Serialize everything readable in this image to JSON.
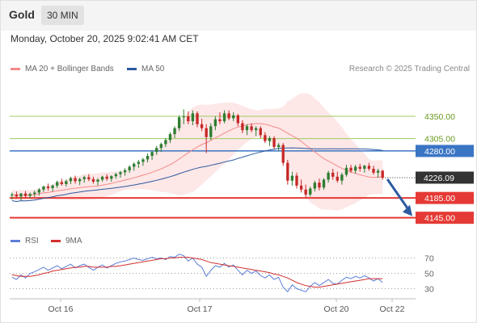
{
  "header": {
    "symbol": "Gold",
    "timeframe": "30 MIN",
    "datetime": "Monday, October 20, 2025 9:02:41 AM CET"
  },
  "legend": {
    "ma20": "MA 20 + Bollinger Bands",
    "ma50": "MA 50",
    "rsi": "RSI",
    "ma9": "9MA",
    "credit": "Research © 2025 Trading Central"
  },
  "colors": {
    "ma20": "#f58a8a",
    "ma50": "#2c5aa0",
    "band": "#fde3e3",
    "up": "#2e7d32",
    "down": "#c62828",
    "resistance": "#9ccc65",
    "pivot": "#3a75c4",
    "support": "#e53935",
    "arrow": "#2c5aa0",
    "rsi": "#5b7fd6",
    "rsi_ma": "#d32f2f"
  },
  "chart_data": [
    {
      "type": "candlestick",
      "x_labels": [
        "Oct 16",
        "Oct 17",
        "Oct 20",
        "Oct 22"
      ],
      "ylim": [
        4120,
        4430
      ],
      "levels": [
        {
          "value": 4350.0,
          "label": "4350.00",
          "kind": "resistance"
        },
        {
          "value": 4305.0,
          "label": "4305.00",
          "kind": "resistance"
        },
        {
          "value": 4280.0,
          "label": "4280.00",
          "kind": "pivot"
        },
        {
          "value": 4185.0,
          "label": "4185.00",
          "kind": "support"
        },
        {
          "value": 4145.0,
          "label": "4145.00",
          "kind": "support"
        }
      ],
      "last_price": {
        "value": 4226.09,
        "label": "4226.09"
      },
      "forecast_target": 4145,
      "candles": [
        [
          4190,
          4196,
          4182,
          4192
        ],
        [
          4192,
          4198,
          4185,
          4188
        ],
        [
          4188,
          4195,
          4180,
          4194
        ],
        [
          4194,
          4199,
          4186,
          4189
        ],
        [
          4189,
          4196,
          4184,
          4193
        ],
        [
          4193,
          4200,
          4187,
          4196
        ],
        [
          4196,
          4205,
          4190,
          4202
        ],
        [
          4202,
          4210,
          4197,
          4208
        ],
        [
          4208,
          4214,
          4200,
          4205
        ],
        [
          4205,
          4212,
          4198,
          4210
        ],
        [
          4210,
          4220,
          4205,
          4217
        ],
        [
          4217,
          4224,
          4210,
          4213
        ],
        [
          4213,
          4222,
          4208,
          4219
        ],
        [
          4219,
          4228,
          4213,
          4225
        ],
        [
          4225,
          4230,
          4214,
          4219
        ],
        [
          4219,
          4226,
          4211,
          4223
        ],
        [
          4223,
          4230,
          4216,
          4227
        ],
        [
          4227,
          4233,
          4219,
          4223
        ],
        [
          4223,
          4228,
          4214,
          4218
        ],
        [
          4218,
          4225,
          4210,
          4222
        ],
        [
          4222,
          4230,
          4218,
          4228
        ],
        [
          4228,
          4233,
          4220,
          4224
        ],
        [
          4224,
          4231,
          4218,
          4229
        ],
        [
          4229,
          4236,
          4224,
          4233
        ],
        [
          4233,
          4240,
          4226,
          4237
        ],
        [
          4237,
          4245,
          4230,
          4241
        ],
        [
          4241,
          4251,
          4236,
          4248
        ],
        [
          4248,
          4257,
          4240,
          4254
        ],
        [
          4254,
          4262,
          4246,
          4258
        ],
        [
          4258,
          4266,
          4250,
          4263
        ],
        [
          4263,
          4275,
          4257,
          4270
        ],
        [
          4270,
          4281,
          4262,
          4278
        ],
        [
          4278,
          4290,
          4272,
          4286
        ],
        [
          4286,
          4297,
          4278,
          4294
        ],
        [
          4294,
          4306,
          4288,
          4302
        ],
        [
          4302,
          4318,
          4296,
          4314
        ],
        [
          4314,
          4330,
          4306,
          4326
        ],
        [
          4326,
          4352,
          4320,
          4348
        ],
        [
          4348,
          4364,
          4334,
          4350
        ],
        [
          4350,
          4360,
          4334,
          4340
        ],
        [
          4340,
          4362,
          4332,
          4356
        ],
        [
          4356,
          4360,
          4328,
          4334
        ],
        [
          4334,
          4345,
          4320,
          4326
        ],
        [
          4326,
          4334,
          4276,
          4308
        ],
        [
          4308,
          4336,
          4302,
          4330
        ],
        [
          4330,
          4350,
          4322,
          4344
        ],
        [
          4344,
          4358,
          4334,
          4340
        ],
        [
          4340,
          4362,
          4336,
          4356
        ],
        [
          4356,
          4362,
          4342,
          4346
        ],
        [
          4346,
          4358,
          4340,
          4352
        ],
        [
          4352,
          4355,
          4330,
          4336
        ],
        [
          4336,
          4342,
          4316,
          4322
        ],
        [
          4322,
          4334,
          4312,
          4330
        ],
        [
          4330,
          4336,
          4318,
          4322
        ],
        [
          4322,
          4330,
          4310,
          4326
        ],
        [
          4326,
          4330,
          4306,
          4312
        ],
        [
          4312,
          4318,
          4296,
          4300
        ],
        [
          4300,
          4310,
          4290,
          4306
        ],
        [
          4306,
          4310,
          4284,
          4288
        ],
        [
          4288,
          4296,
          4280,
          4292
        ],
        [
          4292,
          4296,
          4250,
          4256
        ],
        [
          4256,
          4262,
          4212,
          4220
        ],
        [
          4220,
          4238,
          4210,
          4230
        ],
        [
          4230,
          4236,
          4204,
          4210
        ],
        [
          4210,
          4222,
          4196,
          4202
        ],
        [
          4202,
          4212,
          4186,
          4192
        ],
        [
          4192,
          4208,
          4188,
          4204
        ],
        [
          4204,
          4220,
          4198,
          4216
        ],
        [
          4216,
          4224,
          4200,
          4206
        ],
        [
          4206,
          4225,
          4202,
          4222
        ],
        [
          4222,
          4240,
          4216,
          4236
        ],
        [
          4236,
          4244,
          4222,
          4228
        ],
        [
          4228,
          4238,
          4216,
          4220
        ],
        [
          4220,
          4236,
          4212,
          4232
        ],
        [
          4232,
          4252,
          4228,
          4246
        ],
        [
          4246,
          4252,
          4236,
          4240
        ],
        [
          4240,
          4252,
          4234,
          4248
        ],
        [
          4248,
          4254,
          4238,
          4244
        ],
        [
          4244,
          4252,
          4236,
          4250
        ],
        [
          4250,
          4256,
          4240,
          4244
        ],
        [
          4244,
          4250,
          4232,
          4236
        ],
        [
          4236,
          4244,
          4226,
          4240
        ],
        [
          4240,
          4242,
          4222,
          4226
        ]
      ]
    },
    {
      "type": "line",
      "name": "RSI",
      "ylim": [
        20,
        80
      ],
      "y_ticks": [
        70,
        50,
        30
      ],
      "series": [
        {
          "name": "RSI",
          "values": [
            45,
            42,
            48,
            44,
            50,
            52,
            55,
            58,
            54,
            57,
            60,
            56,
            59,
            62,
            57,
            60,
            62,
            58,
            54,
            58,
            61,
            57,
            60,
            63,
            65,
            66,
            68,
            70,
            68,
            67,
            69,
            71,
            69,
            70,
            68,
            72,
            71,
            75,
            73,
            66,
            70,
            62,
            58,
            46,
            54,
            60,
            58,
            63,
            58,
            61,
            54,
            48,
            54,
            50,
            53,
            47,
            44,
            48,
            42,
            45,
            32,
            26,
            35,
            30,
            28,
            26,
            33,
            38,
            34,
            38,
            42,
            37,
            36,
            41,
            45,
            43,
            46,
            44,
            47,
            44,
            40,
            43,
            38
          ]
        },
        {
          "name": "9MA",
          "values": [
            48,
            47,
            46,
            46,
            46,
            47,
            48,
            50,
            51,
            53,
            54,
            55,
            56,
            57,
            58,
            58,
            59,
            59,
            58,
            58,
            58,
            58,
            59,
            59,
            60,
            61,
            62,
            63,
            64,
            65,
            66,
            67,
            68,
            69,
            69,
            70,
            70,
            71,
            71,
            71,
            70,
            69,
            68,
            66,
            64,
            63,
            62,
            61,
            60,
            59,
            58,
            57,
            56,
            55,
            54,
            53,
            52,
            51,
            49,
            48,
            46,
            44,
            41,
            38,
            36,
            34,
            33,
            32,
            32,
            33,
            34,
            35,
            36,
            37,
            38,
            39,
            40,
            41,
            42,
            43,
            43,
            43,
            43
          ]
        }
      ]
    }
  ]
}
